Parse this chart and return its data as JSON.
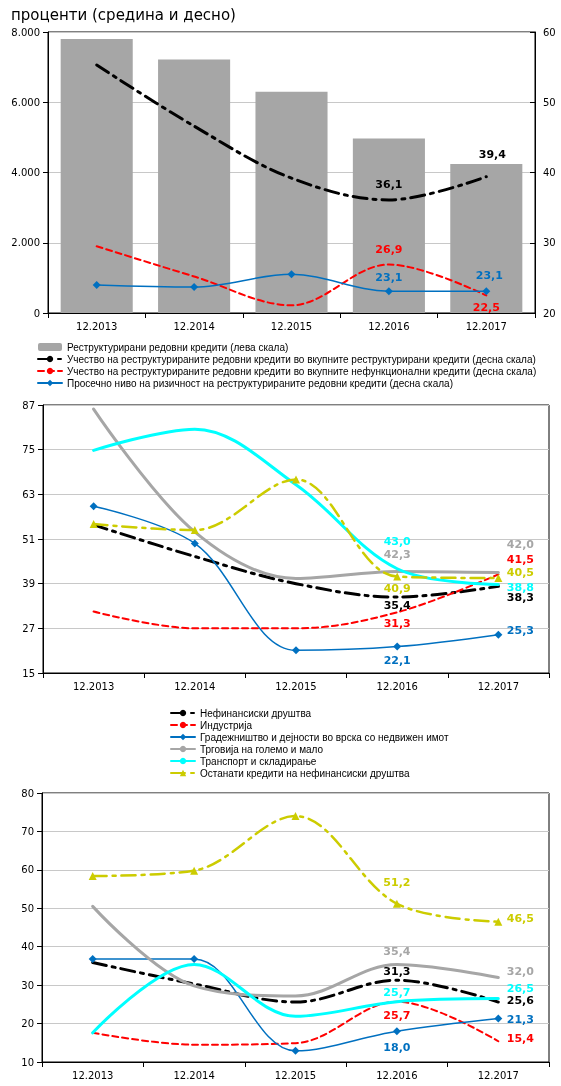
{
  "chart_data": [
    {
      "type": "bar",
      "title": "проценти (средина и десно)",
      "categories": [
        "12.2013",
        "12.2014",
        "12.2015",
        "12.2016",
        "12.2017"
      ],
      "series": [
        {
          "name": "Реструктурирани редовни кредити (лева скала)",
          "type": "bar",
          "color": "#a6a6a6",
          "values": [
            7800,
            7220,
            6300,
            4970,
            4240
          ]
        },
        {
          "name": "Учество на реструктурираните редовни кредити во вкупните реструктурирани кредити (десна скала)",
          "type": "line",
          "axis": "y2",
          "color": "#000000",
          "line_style": "dashdot",
          "marker": "none",
          "values": [
            55.3,
            46.6,
            39.2,
            36.1,
            39.4
          ],
          "value_labels": [
            null,
            null,
            null,
            "36,1",
            "39,4"
          ]
        },
        {
          "name": "Учество на реструктурираните редовни кредити во вкупните нефункционални кредити (десна скала)",
          "type": "line",
          "axis": "y2",
          "color": "#ff0000",
          "line_style": "dashed",
          "marker": "none",
          "values": [
            29.5,
            25.2,
            21.1,
            26.9,
            22.5
          ],
          "value_labels": [
            null,
            null,
            null,
            "26,9",
            "22,5"
          ]
        },
        {
          "name": "Просечно ниво на ризичност на реструктурираните редовни кредити (десна скала)",
          "type": "line",
          "axis": "y2",
          "color": "#0070c0",
          "line_style": "solid",
          "marker": "diamond",
          "values": [
            24.0,
            23.7,
            25.5,
            23.1,
            23.1
          ],
          "value_labels": [
            null,
            null,
            null,
            "23,1",
            "23,1"
          ]
        }
      ],
      "ylim": [
        0,
        8000
      ],
      "yticks": [
        {
          "value": 0,
          "label": "0"
        },
        {
          "value": 2000,
          "label": "2.000"
        },
        {
          "value": 4000,
          "label": "4.000"
        },
        {
          "value": 6000,
          "label": "6.000"
        },
        {
          "value": 8000,
          "label": "8.000"
        }
      ],
      "y2lim": [
        20,
        60
      ],
      "y2ticks": [
        20,
        30,
        40,
        50,
        60
      ],
      "grid": "y",
      "legend": "bottom"
    },
    {
      "type": "line",
      "categories": [
        "12.2013",
        "12.2014",
        "12.2015",
        "12.2016",
        "12.2017"
      ],
      "series": [
        {
          "name": "Нефинансиски друштва",
          "color": "#000000",
          "line_style": "dashdot",
          "marker": "none",
          "values": [
            54.8,
            46.3,
            39.0,
            35.4,
            38.3
          ],
          "value_labels": [
            null,
            null,
            null,
            "35,4",
            "38,3"
          ]
        },
        {
          "name": "Индустрија",
          "color": "#ff0000",
          "line_style": "dashed",
          "marker": "none",
          "values": [
            31.5,
            27.0,
            27.0,
            31.3,
            41.5
          ],
          "value_labels": [
            null,
            null,
            null,
            "31,3",
            "41,5"
          ]
        },
        {
          "name": "Градежништво и дејности во врска со недвижен имот",
          "color": "#0070c0",
          "line_style": "solid",
          "marker": "diamond",
          "values": [
            59.8,
            49.8,
            21.1,
            22.1,
            25.3
          ],
          "value_labels": [
            null,
            null,
            null,
            "22,1",
            "25,3"
          ]
        },
        {
          "name": "Трговија на големо и мало",
          "color": "#a6a6a6",
          "line_style": "solid",
          "marker": "none",
          "values": [
            85.9,
            52.9,
            40.4,
            42.3,
            42.0
          ],
          "value_labels": [
            null,
            null,
            null,
            "42,3",
            "42,0"
          ]
        },
        {
          "name": "Транспорт и складирање",
          "color": "#00ffff",
          "line_style": "solid",
          "marker": "none",
          "values": [
            74.8,
            80.5,
            65.6,
            43.0,
            38.8
          ],
          "value_labels": [
            null,
            null,
            null,
            "43,0",
            "38,8"
          ]
        },
        {
          "name": "Останати кредити на нефинансиски друштва",
          "color": "#cccc00",
          "line_style": "dashdot",
          "marker": "triangle",
          "values": [
            55.0,
            53.4,
            67.0,
            40.9,
            40.5
          ],
          "value_labels": [
            null,
            null,
            null,
            "40,9",
            "40,5"
          ]
        }
      ],
      "ylim": [
        15,
        87
      ],
      "yticks": [
        15,
        27,
        39,
        51,
        63,
        75,
        87
      ],
      "grid": "y",
      "legend": "bottom"
    },
    {
      "type": "line",
      "categories": [
        "12.2013",
        "12.2014",
        "12.2015",
        "12.2016",
        "12.2017"
      ],
      "series": [
        {
          "color": "#000000",
          "line_style": "dashdot",
          "marker": "none",
          "values": [
            35.9,
            30.3,
            25.6,
            31.3,
            25.6
          ],
          "value_labels": [
            null,
            null,
            null,
            "31,3",
            "25,6"
          ]
        },
        {
          "color": "#ff0000",
          "line_style": "dashed",
          "marker": "none",
          "values": [
            17.6,
            14.5,
            14.9,
            25.7,
            15.4
          ],
          "value_labels": [
            null,
            null,
            null,
            "25,7",
            "15,4"
          ]
        },
        {
          "color": "#0070c0",
          "line_style": "solid",
          "marker": "diamond",
          "values": [
            36.8,
            36.8,
            12.9,
            18.0,
            21.3
          ],
          "value_labels": [
            null,
            null,
            null,
            "18,0",
            "21,3"
          ]
        },
        {
          "color": "#a6a6a6",
          "line_style": "solid",
          "marker": "none",
          "values": [
            50.5,
            29.8,
            27.2,
            35.4,
            32.0
          ],
          "value_labels": [
            null,
            null,
            null,
            "35,4",
            "32,0"
          ]
        },
        {
          "color": "#00ffff",
          "line_style": "solid",
          "marker": "none",
          "values": [
            17.6,
            35.4,
            21.9,
            25.7,
            26.5
          ],
          "value_labels": [
            null,
            null,
            null,
            "25,7",
            "26,5"
          ]
        },
        {
          "color": "#cccc00",
          "line_style": "dashdot",
          "marker": "triangle",
          "values": [
            58.4,
            59.8,
            74.0,
            51.2,
            46.5
          ],
          "value_labels": [
            null,
            null,
            null,
            "51,2",
            "46,5"
          ]
        }
      ],
      "ylim": [
        10,
        80
      ],
      "yticks": [
        10,
        20,
        30,
        40,
        50,
        60,
        70,
        80
      ],
      "grid": "y"
    }
  ]
}
